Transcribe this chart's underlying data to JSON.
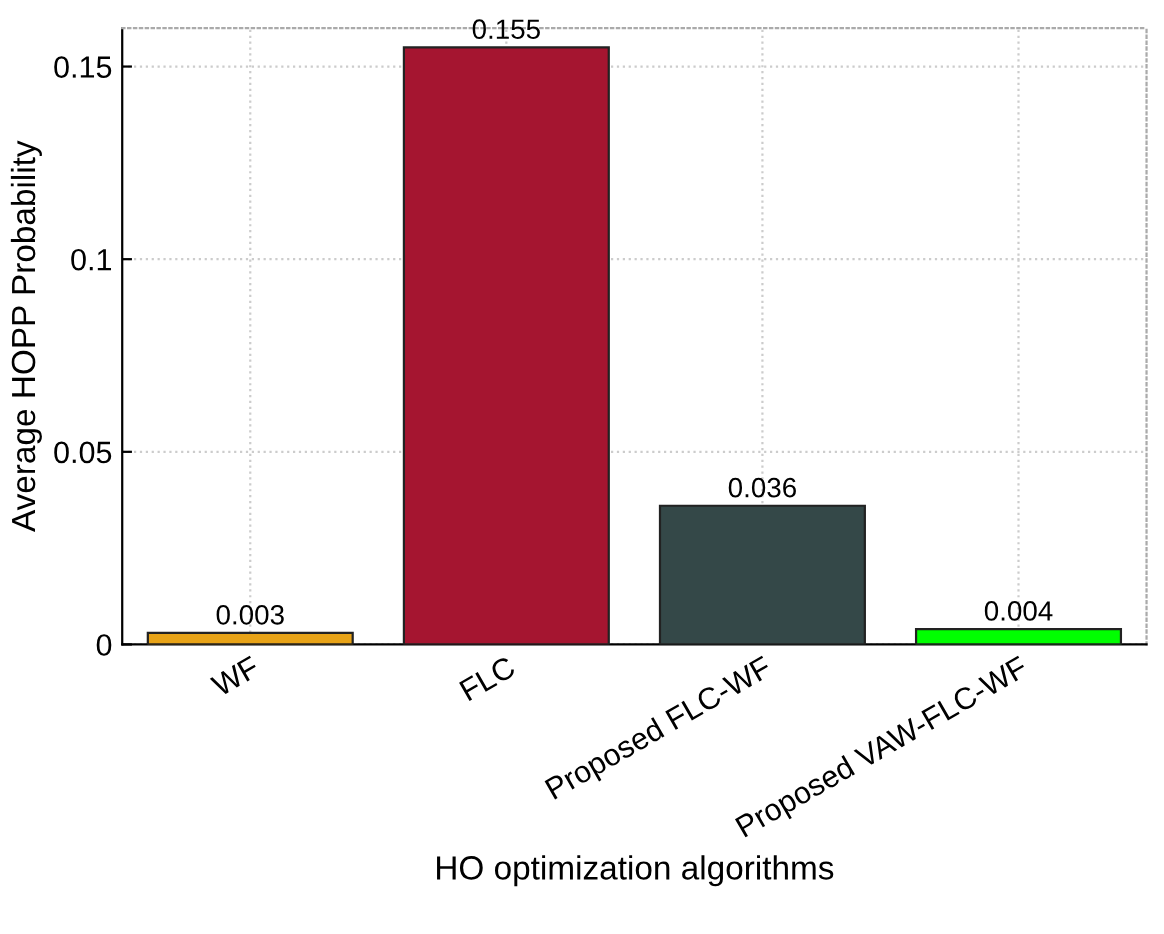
{
  "chart_data": {
    "type": "bar",
    "xlabel": "HO optimization algorithms",
    "ylabel": "Average HOPP Probability",
    "categories": [
      "WF",
      "FLC",
      "Proposed FLC-WF",
      "Proposed VAW-FLC-WF"
    ],
    "values": [
      0.003,
      0.155,
      0.036,
      0.004
    ],
    "colors": [
      "#e8a317",
      "#a51530",
      "#344848",
      "#00ff00"
    ],
    "ylim": [
      0,
      0.16
    ],
    "yticks": [
      0,
      0.05,
      0.1,
      0.15
    ],
    "grid": true,
    "data_labels": true
  }
}
